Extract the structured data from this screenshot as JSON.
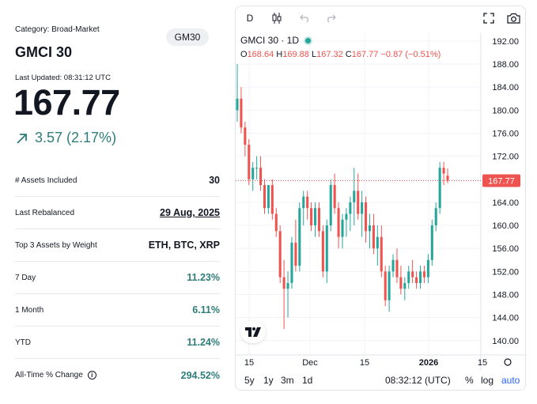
{
  "asset": {
    "category": "Category: Broad-Market",
    "ticker": "GM30",
    "name": "GMCI 30",
    "last_updated": "Last Updated: 08:31:12 UTC",
    "price": "167.77",
    "change": "3.57 (2.17%)"
  },
  "stats": [
    {
      "label": "# Assets Included",
      "value": "30"
    },
    {
      "label": "Last Rebalanced",
      "value": "29 Aug, 2025"
    },
    {
      "label": "Top 3 Assets by Weight",
      "value": "ETH, BTC, XRP"
    },
    {
      "label": "7 Day",
      "value": "11.23%"
    },
    {
      "label": "1 Month",
      "value": "6.11%"
    },
    {
      "label": "YTD",
      "value": "11.24%"
    },
    {
      "label": "All-Time % Change",
      "value": "294.52%"
    }
  ],
  "chart": {
    "toolbar": {
      "interval": "D"
    },
    "legend": {
      "title": "GMCI 30 · 1D",
      "o_label": "O",
      "o": "168.64",
      "h_label": "H",
      "h": "169.88",
      "l_label": "L",
      "l": "167.32",
      "c_label": "C",
      "c": "167.77",
      "chg": "−0.87 (−0.51%)"
    },
    "price_tag": "167.77",
    "bottom": {
      "ranges": [
        "5y",
        "1y",
        "3m",
        "1d"
      ],
      "time": "08:32:12 (UTC)",
      "pct": "%",
      "log": "log",
      "auto": "auto"
    },
    "colors": {
      "up": "#26a69a",
      "down": "#ef5350"
    }
  },
  "chart_data": {
    "type": "candlestick",
    "x_ticks": [
      "15",
      "Dec",
      "15",
      "2026",
      "15"
    ],
    "y_ticks": [
      "192.00",
      "188.00",
      "184.00",
      "180.00",
      "176.00",
      "172.00",
      "168.00",
      "164.00",
      "160.00",
      "156.00",
      "152.00",
      "148.00",
      "144.00",
      "140.00"
    ],
    "ylim": [
      137.5,
      193.5
    ],
    "last_price": 167.77,
    "candles": [
      [
        180,
        188,
        178,
        182
      ],
      [
        182,
        184,
        176,
        177
      ],
      [
        177,
        178,
        172,
        174
      ],
      [
        174,
        175,
        167,
        168
      ],
      [
        168,
        171,
        166,
        170
      ],
      [
        170,
        172,
        168,
        170
      ],
      [
        170,
        172,
        166,
        167
      ],
      [
        167,
        168,
        162,
        163
      ],
      [
        163,
        167,
        162,
        167
      ],
      [
        167,
        168,
        161,
        162
      ],
      [
        162,
        163,
        158,
        159
      ],
      [
        159,
        160,
        150,
        151
      ],
      [
        151,
        154,
        142,
        149
      ],
      [
        149,
        152,
        144,
        150
      ],
      [
        150,
        158,
        149,
        157
      ],
      [
        157,
        161,
        152,
        153
      ],
      [
        153,
        164,
        152,
        163
      ],
      [
        163,
        166,
        160,
        165
      ],
      [
        165,
        166,
        161,
        163
      ],
      [
        163,
        164,
        159,
        160
      ],
      [
        160,
        164,
        158,
        163
      ],
      [
        163,
        164,
        158,
        159
      ],
      [
        159,
        160,
        151,
        152
      ],
      [
        152,
        161,
        150,
        160
      ],
      [
        160,
        168,
        159,
        167
      ],
      [
        167,
        169,
        162,
        163
      ],
      [
        163,
        164,
        156,
        158
      ],
      [
        158,
        162,
        156,
        161
      ],
      [
        161,
        163,
        158,
        162
      ],
      [
        162,
        165,
        159,
        164
      ],
      [
        164,
        170,
        160,
        166
      ],
      [
        166,
        169,
        161,
        162
      ],
      [
        162,
        166,
        158,
        164
      ],
      [
        164,
        165,
        157,
        159
      ],
      [
        159,
        162,
        156,
        160
      ],
      [
        160,
        162,
        155,
        156
      ],
      [
        156,
        160,
        153,
        158
      ],
      [
        158,
        160,
        151,
        152
      ],
      [
        152,
        153,
        146,
        147
      ],
      [
        147,
        153,
        145,
        152
      ],
      [
        152,
        155,
        151,
        154
      ],
      [
        154,
        156,
        150,
        151
      ],
      [
        151,
        153,
        148,
        149
      ],
      [
        149,
        151,
        147,
        150
      ],
      [
        150,
        153,
        149,
        152
      ],
      [
        152,
        154,
        150,
        151
      ],
      [
        151,
        152,
        149,
        150
      ],
      [
        150,
        153,
        149,
        152
      ],
      [
        152,
        153,
        150,
        151
      ],
      [
        151,
        155,
        150,
        154
      ],
      [
        154,
        161,
        153,
        160
      ],
      [
        160,
        164,
        159,
        163
      ],
      [
        163,
        171,
        162,
        170
      ],
      [
        170,
        171,
        167,
        169
      ],
      [
        168.64,
        169.88,
        167.32,
        167.77
      ]
    ]
  }
}
